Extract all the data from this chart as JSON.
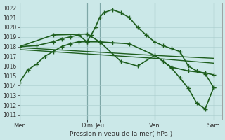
{
  "background_color": "#cbe8e8",
  "grid_color": "#a8cccc",
  "line_color": "#1e5e1e",
  "xlabel": "Pression niveau de la mer( hPa )",
  "ylim": [
    1010.5,
    1022.5
  ],
  "yticks": [
    1011,
    1012,
    1013,
    1014,
    1015,
    1016,
    1017,
    1018,
    1019,
    1020,
    1021,
    1022
  ],
  "xlim": [
    0,
    24
  ],
  "xtick_positions": [
    0,
    8,
    9.5,
    16,
    23
  ],
  "xtick_labels": [
    "Mer",
    "Dim",
    "Jeu",
    "Ven",
    "Sam"
  ],
  "vline_positions": [
    0,
    8,
    9.5,
    16,
    23
  ],
  "vline_color": "#4a7a7a",
  "series": [
    {
      "x": [
        0,
        1,
        2,
        3,
        4,
        5,
        6,
        7,
        8,
        8.5,
        9,
        9.5,
        10,
        11,
        12,
        13,
        14,
        15,
        16,
        17,
        18,
        19,
        20,
        21,
        22,
        23
      ],
      "y": [
        1014.3,
        1015.6,
        1016.2,
        1017.0,
        1017.5,
        1018.0,
        1018.3,
        1018.5,
        1018.5,
        1019.2,
        1020.0,
        1021.0,
        1021.5,
        1021.8,
        1021.5,
        1021.0,
        1020.0,
        1019.2,
        1018.5,
        1018.1,
        1017.8,
        1017.5,
        1016.0,
        1015.5,
        1015.2,
        1013.8
      ],
      "marker": "+",
      "ms": 4,
      "lw": 1.2
    },
    {
      "x": [
        0,
        2,
        4,
        5,
        6,
        7,
        8,
        9.5,
        11,
        13,
        16,
        18,
        20,
        22,
        23
      ],
      "y": [
        1018.0,
        1018.1,
        1018.5,
        1018.8,
        1019.0,
        1019.2,
        1018.5,
        1018.5,
        1018.4,
        1018.3,
        1017.1,
        1015.9,
        1015.5,
        1015.3,
        1015.1
      ],
      "marker": "+",
      "ms": 4,
      "lw": 1.2
    },
    {
      "x": [
        0,
        16,
        23
      ],
      "y": [
        1017.9,
        1017.1,
        1016.8
      ],
      "marker": null,
      "ms": 0,
      "lw": 1.0
    },
    {
      "x": [
        0,
        16,
        23
      ],
      "y": [
        1017.7,
        1016.8,
        1016.3
      ],
      "marker": null,
      "ms": 0,
      "lw": 1.0
    },
    {
      "x": [
        0,
        4,
        8,
        9.5,
        12,
        14,
        16,
        17,
        18,
        19,
        20,
        21,
        22,
        23
      ],
      "y": [
        1018.0,
        1019.2,
        1019.3,
        1018.5,
        1016.5,
        1016.0,
        1017.1,
        1016.5,
        1015.8,
        1014.8,
        1013.7,
        1012.2,
        1011.6,
        1013.8
      ],
      "marker": "+",
      "ms": 4,
      "lw": 1.2
    }
  ]
}
